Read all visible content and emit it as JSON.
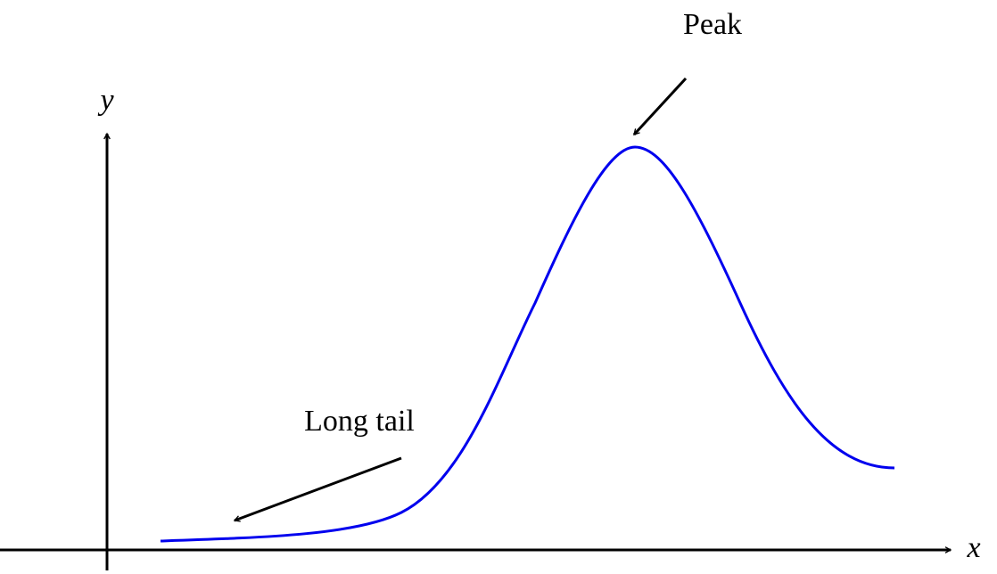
{
  "axes": {
    "x_label": "x",
    "y_label": "y"
  },
  "annotations": {
    "peak": "Peak",
    "tail": "Long tail"
  }
}
